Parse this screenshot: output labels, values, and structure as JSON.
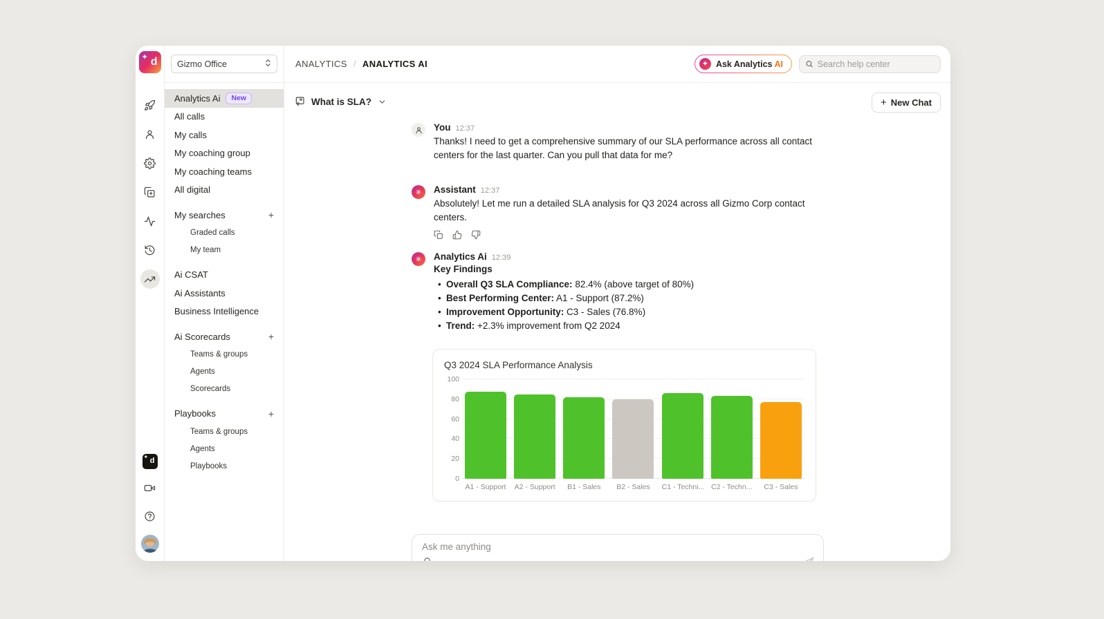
{
  "workspace_selector": {
    "value": "Gizmo Office"
  },
  "rail": {
    "icons": [
      "rocket-icon",
      "person-icon",
      "gear-icon",
      "clipboard-plus-icon",
      "activity-icon",
      "history-icon",
      "trending-up-icon"
    ],
    "active_icon": "trending-up-icon",
    "bottom_icons": [
      "app-logo-dark",
      "video-camera-icon",
      "help-icon",
      "user-avatar"
    ]
  },
  "header": {
    "breadcrumb": {
      "root": "ANALYTICS",
      "separator": "/",
      "current": "ANALYTICS AI"
    },
    "ask_button": {
      "label": "Ask Analytics",
      "ai": "AI"
    },
    "search_placeholder": "Search help center"
  },
  "sidebar": {
    "items": [
      {
        "label": "Analytics Ai",
        "badge": "New",
        "active": true
      },
      {
        "label": "All calls"
      },
      {
        "label": "My calls"
      },
      {
        "label": "My coaching group"
      },
      {
        "label": "My coaching teams"
      },
      {
        "label": "All digital"
      }
    ],
    "sections": [
      {
        "label": "My searches",
        "action": "+",
        "children": [
          "Graded calls",
          "My team"
        ]
      },
      {
        "label": "Ai Scorecards",
        "action": "+",
        "children": [
          "Teams & groups",
          "Agents",
          "Scorecards"
        ]
      },
      {
        "label": "Playbooks",
        "action": "+",
        "children": [
          "Teams & groups",
          "Agents",
          "Playbooks"
        ]
      }
    ],
    "mid_items": [
      "Ai CSAT",
      "Ai Assistants",
      "Business Intelligence"
    ]
  },
  "toolbar": {
    "thread_title": "What is SLA?",
    "new_chat_label": "New Chat",
    "plus": "+"
  },
  "messages": [
    {
      "author": "You",
      "time": "12:37",
      "text": "Thanks! I need to get a comprehensive summary of our SLA performance across all contact centers for the last quarter. Can you pull that data for me?"
    },
    {
      "author": "Assistant",
      "time": "12:37",
      "text": "Absolutely! Let me run a detailed SLA analysis for Q3 2024 across all Gizmo Corp contact centers."
    },
    {
      "author": "Analytics Ai",
      "time": "12:39",
      "heading": "Key Findings",
      "bullets": [
        {
          "bold": "Overall Q3 SLA Compliance:",
          "text": " 82.4% (above target of 80%)"
        },
        {
          "bold": "Best Performing Center:",
          "text": " A1 - Support (87.2%)"
        },
        {
          "bold": "Improvement Opportunity:",
          "text": " C3 - Sales (76.8%)"
        },
        {
          "bold": "Trend:",
          "text": " +2.3% improvement from Q2 2024"
        }
      ]
    }
  ],
  "chart_data": {
    "type": "bar",
    "title": "Q3 2024 SLA Performance Analysis",
    "categories": [
      "A1 - Support",
      "A2 - Support",
      "B1 - Sales",
      "B2 - Sales",
      "C1 - Techni...",
      "C2 - Techn...",
      "C3 - Sales"
    ],
    "values": [
      87.2,
      84.6,
      82.1,
      80.1,
      86.0,
      83.4,
      76.8
    ],
    "colors": [
      "#4FC22B",
      "#4FC22B",
      "#4FC22B",
      "#CDC7C2",
      "#4FC22B",
      "#4FC22B",
      "#F9A00F"
    ],
    "xlabel": "",
    "ylabel": "",
    "ylim": [
      0,
      100
    ],
    "yticks": [
      0,
      20,
      40,
      60,
      80,
      100
    ],
    "grid": true,
    "legend": false
  },
  "composer": {
    "placeholder": "Ask me anything"
  },
  "colors": {
    "bar_green": "#4FC22B",
    "bar_gray": "#CDC7C2",
    "bar_orange": "#F9A00F",
    "accent_purple": "#7240F2",
    "accent_orange": "#F97316",
    "brand_gradient": [
      "#A63AA5",
      "#E72D60",
      "#F9A23B"
    ]
  }
}
